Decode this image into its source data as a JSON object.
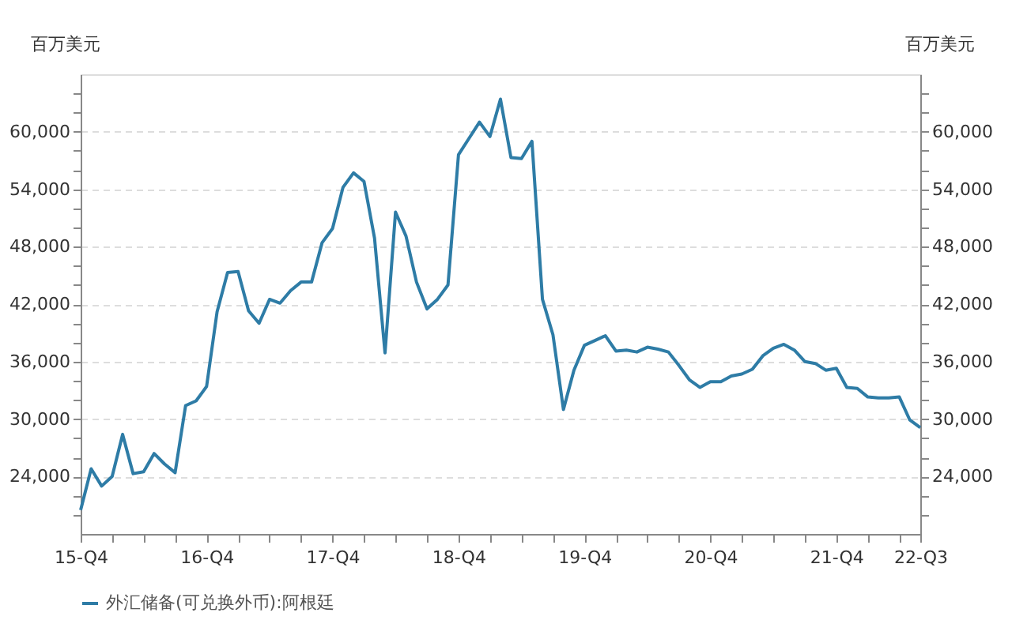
{
  "chart_data": {
    "type": "line",
    "ylabel": "百万美元",
    "y2label": "百万美元",
    "categories": [
      "15-Q4",
      null,
      null,
      null,
      null,
      null,
      null,
      null,
      null,
      null,
      null,
      null,
      "16-Q4",
      null,
      null,
      null,
      null,
      null,
      null,
      null,
      null,
      null,
      null,
      null,
      "17-Q4",
      null,
      null,
      null,
      null,
      null,
      null,
      null,
      null,
      null,
      null,
      null,
      "18-Q4",
      null,
      null,
      null,
      null,
      null,
      null,
      null,
      null,
      null,
      null,
      null,
      "19-Q4",
      null,
      null,
      null,
      null,
      null,
      null,
      null,
      null,
      null,
      null,
      null,
      "20-Q4",
      null,
      null,
      null,
      null,
      null,
      null,
      null,
      null,
      null,
      null,
      null,
      "21-Q4",
      null,
      null,
      null,
      null,
      null,
      null,
      null,
      "22-Q3"
    ],
    "series": [
      {
        "name": "外汇储备(可兑换外币):阿根廷",
        "color": "#2e7ca6",
        "values": [
          20500,
          24800,
          23000,
          24000,
          28400,
          24300,
          24500,
          26400,
          25300,
          24400,
          31400,
          31900,
          33400,
          41200,
          45300,
          45400,
          41300,
          40000,
          42500,
          42100,
          43400,
          44300,
          44300,
          48400,
          49900,
          54200,
          55700,
          54800,
          48900,
          36900,
          51600,
          49100,
          44300,
          41500,
          42500,
          44000,
          57600,
          59300,
          61000,
          59500,
          63400,
          57300,
          57200,
          59000,
          42500,
          38800,
          31000,
          35100,
          37700,
          38200,
          38700,
          37100,
          37200,
          37000,
          37500,
          37300,
          37000,
          35600,
          34100,
          33300,
          33900,
          33900,
          34500,
          34700,
          35200,
          36600,
          37400,
          37800,
          37200,
          36000,
          35800,
          35100,
          35300,
          33300,
          33200,
          32300,
          32200,
          32200,
          32300,
          29900,
          29100
        ]
      }
    ],
    "ylim": [
      18000,
      66000
    ],
    "yticks": [
      {
        "value": 20000,
        "label": null
      },
      {
        "value": 22000,
        "label": null
      },
      {
        "value": 24000,
        "label": "24,000"
      },
      {
        "value": 26000,
        "label": null
      },
      {
        "value": 28000,
        "label": null
      },
      {
        "value": 30000,
        "label": "30,000"
      },
      {
        "value": 32000,
        "label": null
      },
      {
        "value": 34000,
        "label": null
      },
      {
        "value": 36000,
        "label": "36,000"
      },
      {
        "value": 38000,
        "label": null
      },
      {
        "value": 40000,
        "label": null
      },
      {
        "value": 42000,
        "label": "42,000"
      },
      {
        "value": 44000,
        "label": null
      },
      {
        "value": 46000,
        "label": null
      },
      {
        "value": 48000,
        "label": "48,000"
      },
      {
        "value": 50000,
        "label": null
      },
      {
        "value": 52000,
        "label": null
      },
      {
        "value": 54000,
        "label": "54,000"
      },
      {
        "value": 56000,
        "label": null
      },
      {
        "value": 58000,
        "label": null
      },
      {
        "value": 60000,
        "label": "60,000"
      },
      {
        "value": 62000,
        "label": null
      },
      {
        "value": 64000,
        "label": null
      }
    ],
    "y2lim": [
      18000,
      66000
    ],
    "y2ticks": [
      {
        "value": 20000,
        "label": null
      },
      {
        "value": 22000,
        "label": null
      },
      {
        "value": 24000,
        "label": "24,000"
      },
      {
        "value": 26000,
        "label": null
      },
      {
        "value": 28000,
        "label": null
      },
      {
        "value": 30000,
        "label": "30,000"
      },
      {
        "value": 32000,
        "label": null
      },
      {
        "value": 34000,
        "label": null
      },
      {
        "value": 36000,
        "label": "36,000"
      },
      {
        "value": 38000,
        "label": null
      },
      {
        "value": 40000,
        "label": null
      },
      {
        "value": 42000,
        "label": "42,000"
      },
      {
        "value": 44000,
        "label": null
      },
      {
        "value": 46000,
        "label": null
      },
      {
        "value": 48000,
        "label": "48,000"
      },
      {
        "value": 50000,
        "label": null
      },
      {
        "value": 52000,
        "label": null
      },
      {
        "value": 54000,
        "label": "54,000"
      },
      {
        "value": 56000,
        "label": null
      },
      {
        "value": 58000,
        "label": null
      },
      {
        "value": 60000,
        "label": "60,000"
      },
      {
        "value": 62000,
        "label": null
      },
      {
        "value": 64000,
        "label": null
      }
    ],
    "grid": "y",
    "legend": "bottom",
    "marker": "none",
    "line_style": "solid"
  }
}
